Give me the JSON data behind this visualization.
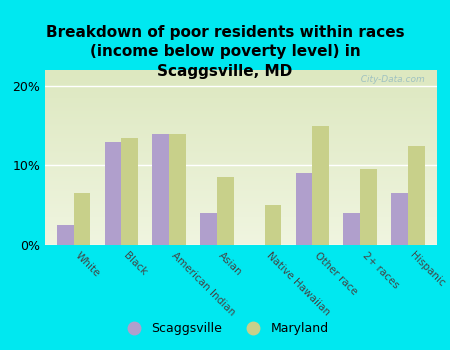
{
  "title": "Breakdown of poor residents within races\n(income below poverty level) in\nScaggsville, MD",
  "categories": [
    "White",
    "Black",
    "American Indian",
    "Asian",
    "Native Hawaiian",
    "Other race",
    "2+ races",
    "Hispanic"
  ],
  "scaggsville_values": [
    2.5,
    13.0,
    14.0,
    4.0,
    0.0,
    9.0,
    4.0,
    6.5
  ],
  "maryland_values": [
    6.5,
    13.5,
    14.0,
    8.5,
    5.0,
    15.0,
    9.5,
    12.5
  ],
  "scaggsville_color": "#b09fcc",
  "maryland_color": "#c8d08a",
  "background_outer": "#00e8f0",
  "background_plot_top": "#dde8c0",
  "background_plot_bottom": "#f0f5e0",
  "title_fontsize": 11,
  "ylabel_ticks": [
    "0%",
    "10%",
    "20%"
  ],
  "ytick_values": [
    0,
    10,
    20
  ],
  "ylim": [
    0,
    22
  ],
  "legend_labels": [
    "Scaggsville",
    "Maryland"
  ],
  "watermark": "  City-Data.com"
}
